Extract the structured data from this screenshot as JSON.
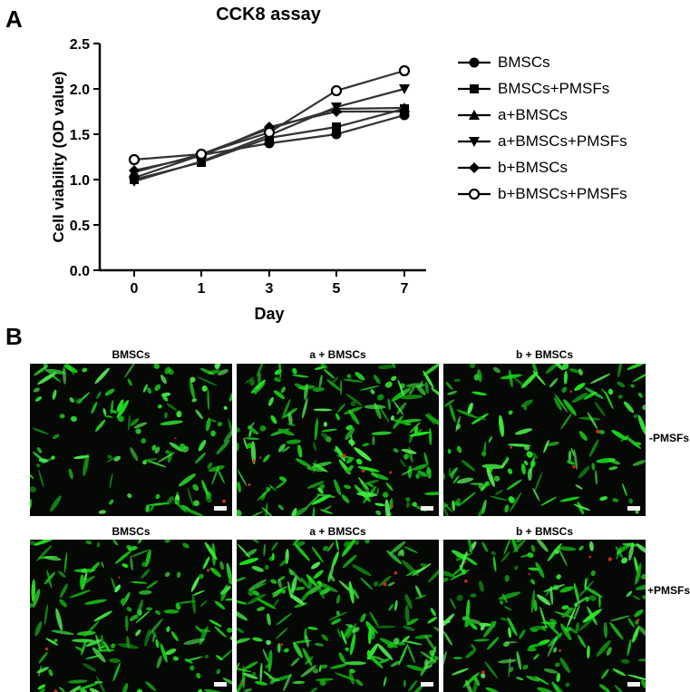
{
  "panel_a_letter": "A",
  "panel_b_letter": "B",
  "chart_data": {
    "type": "line",
    "title": "CCK8 assay",
    "xlabel": "Day",
    "ylabel": "Cell viability (OD value)",
    "categories": [
      "0",
      "1",
      "3",
      "5",
      "7"
    ],
    "ylim": [
      0,
      2.5
    ],
    "yticks": [
      "0.0",
      "0.5",
      "1.0",
      "1.5",
      "2.0",
      "2.5"
    ],
    "legend_position": "right",
    "series": [
      {
        "name": "BMSCs",
        "marker": "circle-filled",
        "values": [
          1.02,
          1.27,
          1.4,
          1.5,
          1.71
        ]
      },
      {
        "name": "BMSCs+PMSFs",
        "marker": "square",
        "values": [
          1.0,
          1.19,
          1.46,
          1.58,
          1.78
        ]
      },
      {
        "name": "a+BMSCs",
        "marker": "triangle-up",
        "values": [
          1.08,
          1.28,
          1.56,
          1.78,
          1.79
        ]
      },
      {
        "name": "a+BMSCs+PMSFs",
        "marker": "triangle-down",
        "values": [
          0.98,
          1.2,
          1.49,
          1.8,
          2.0
        ]
      },
      {
        "name": "b+BMSCs",
        "marker": "diamond",
        "values": [
          1.1,
          1.26,
          1.58,
          1.75,
          1.75
        ]
      },
      {
        "name": "b+BMSCs+PMSFs",
        "marker": "circle-open",
        "values": [
          1.22,
          1.28,
          1.52,
          1.98,
          2.2
        ]
      }
    ]
  },
  "panel_b": {
    "top_row": {
      "labels": [
        "BMSCs",
        "a + BMSCs",
        "b + BMSCs"
      ],
      "side_label": "-PMSFs"
    },
    "bottom_row": {
      "labels": [
        "BMSCs",
        "a + BMSCs",
        "b + BMSCs"
      ],
      "side_label": "+PMSFs"
    },
    "stain_colors": {
      "live": "#2fd22f",
      "dead": "#e03020",
      "background": "#050805"
    },
    "cell_density": [
      0.45,
      0.8,
      0.5,
      0.55,
      0.85,
      0.75
    ]
  }
}
